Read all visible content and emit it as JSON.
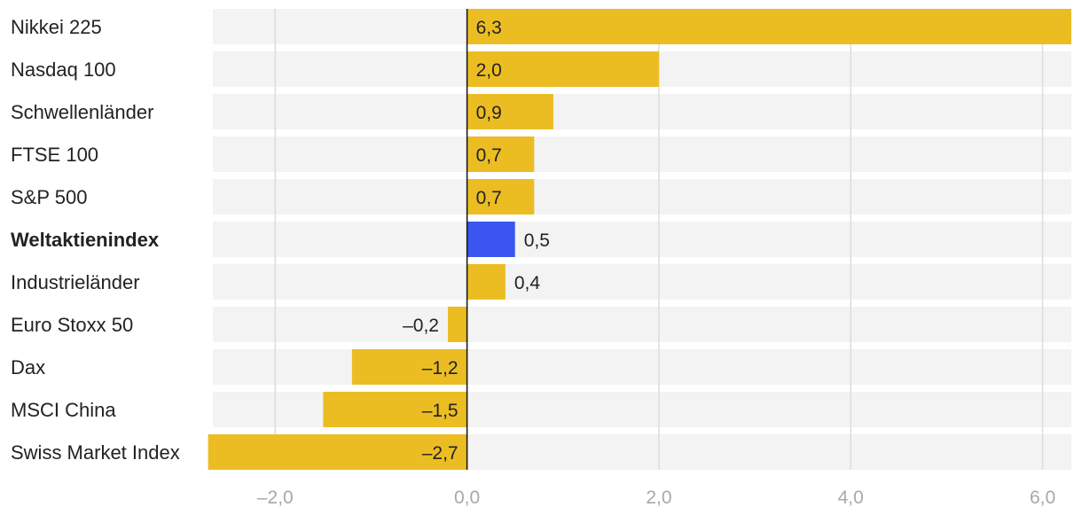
{
  "chart_data": {
    "type": "bar",
    "orientation": "horizontal",
    "categories": [
      "Nikkei 225",
      "Nasdaq 100",
      "Schwellenländer",
      "FTSE 100",
      "S&P 500",
      "Weltaktienindex",
      "Industrieländer",
      "Euro Stoxx 50",
      "Dax",
      "MSCI China",
      "Swiss Market Index"
    ],
    "values": [
      6.3,
      2.0,
      0.9,
      0.7,
      0.7,
      0.5,
      0.4,
      -0.2,
      -1.2,
      -1.5,
      -2.7
    ],
    "value_labels": [
      "6,3",
      "2,0",
      "0,9",
      "0,7",
      "0,7",
      "0,5",
      "0,4",
      "–0,2",
      "–1,2",
      "–1,5",
      "–2,7"
    ],
    "highlight_category": "Weltaktienindex",
    "xlim": [
      -2.65,
      6.3
    ],
    "xticks": [
      -2.0,
      0.0,
      2.0,
      4.0,
      6.0
    ],
    "xtick_labels": [
      "–2,0",
      "0,0",
      "2,0",
      "4,0",
      "6,0"
    ],
    "grid": true,
    "title": "",
    "xlabel": "",
    "ylabel": ""
  },
  "colors": {
    "bar": "#ebbd23",
    "highlight": "#3a55f0",
    "track": "#f3f3f3",
    "grid": "#dcdcdc",
    "axis": "#111111"
  }
}
